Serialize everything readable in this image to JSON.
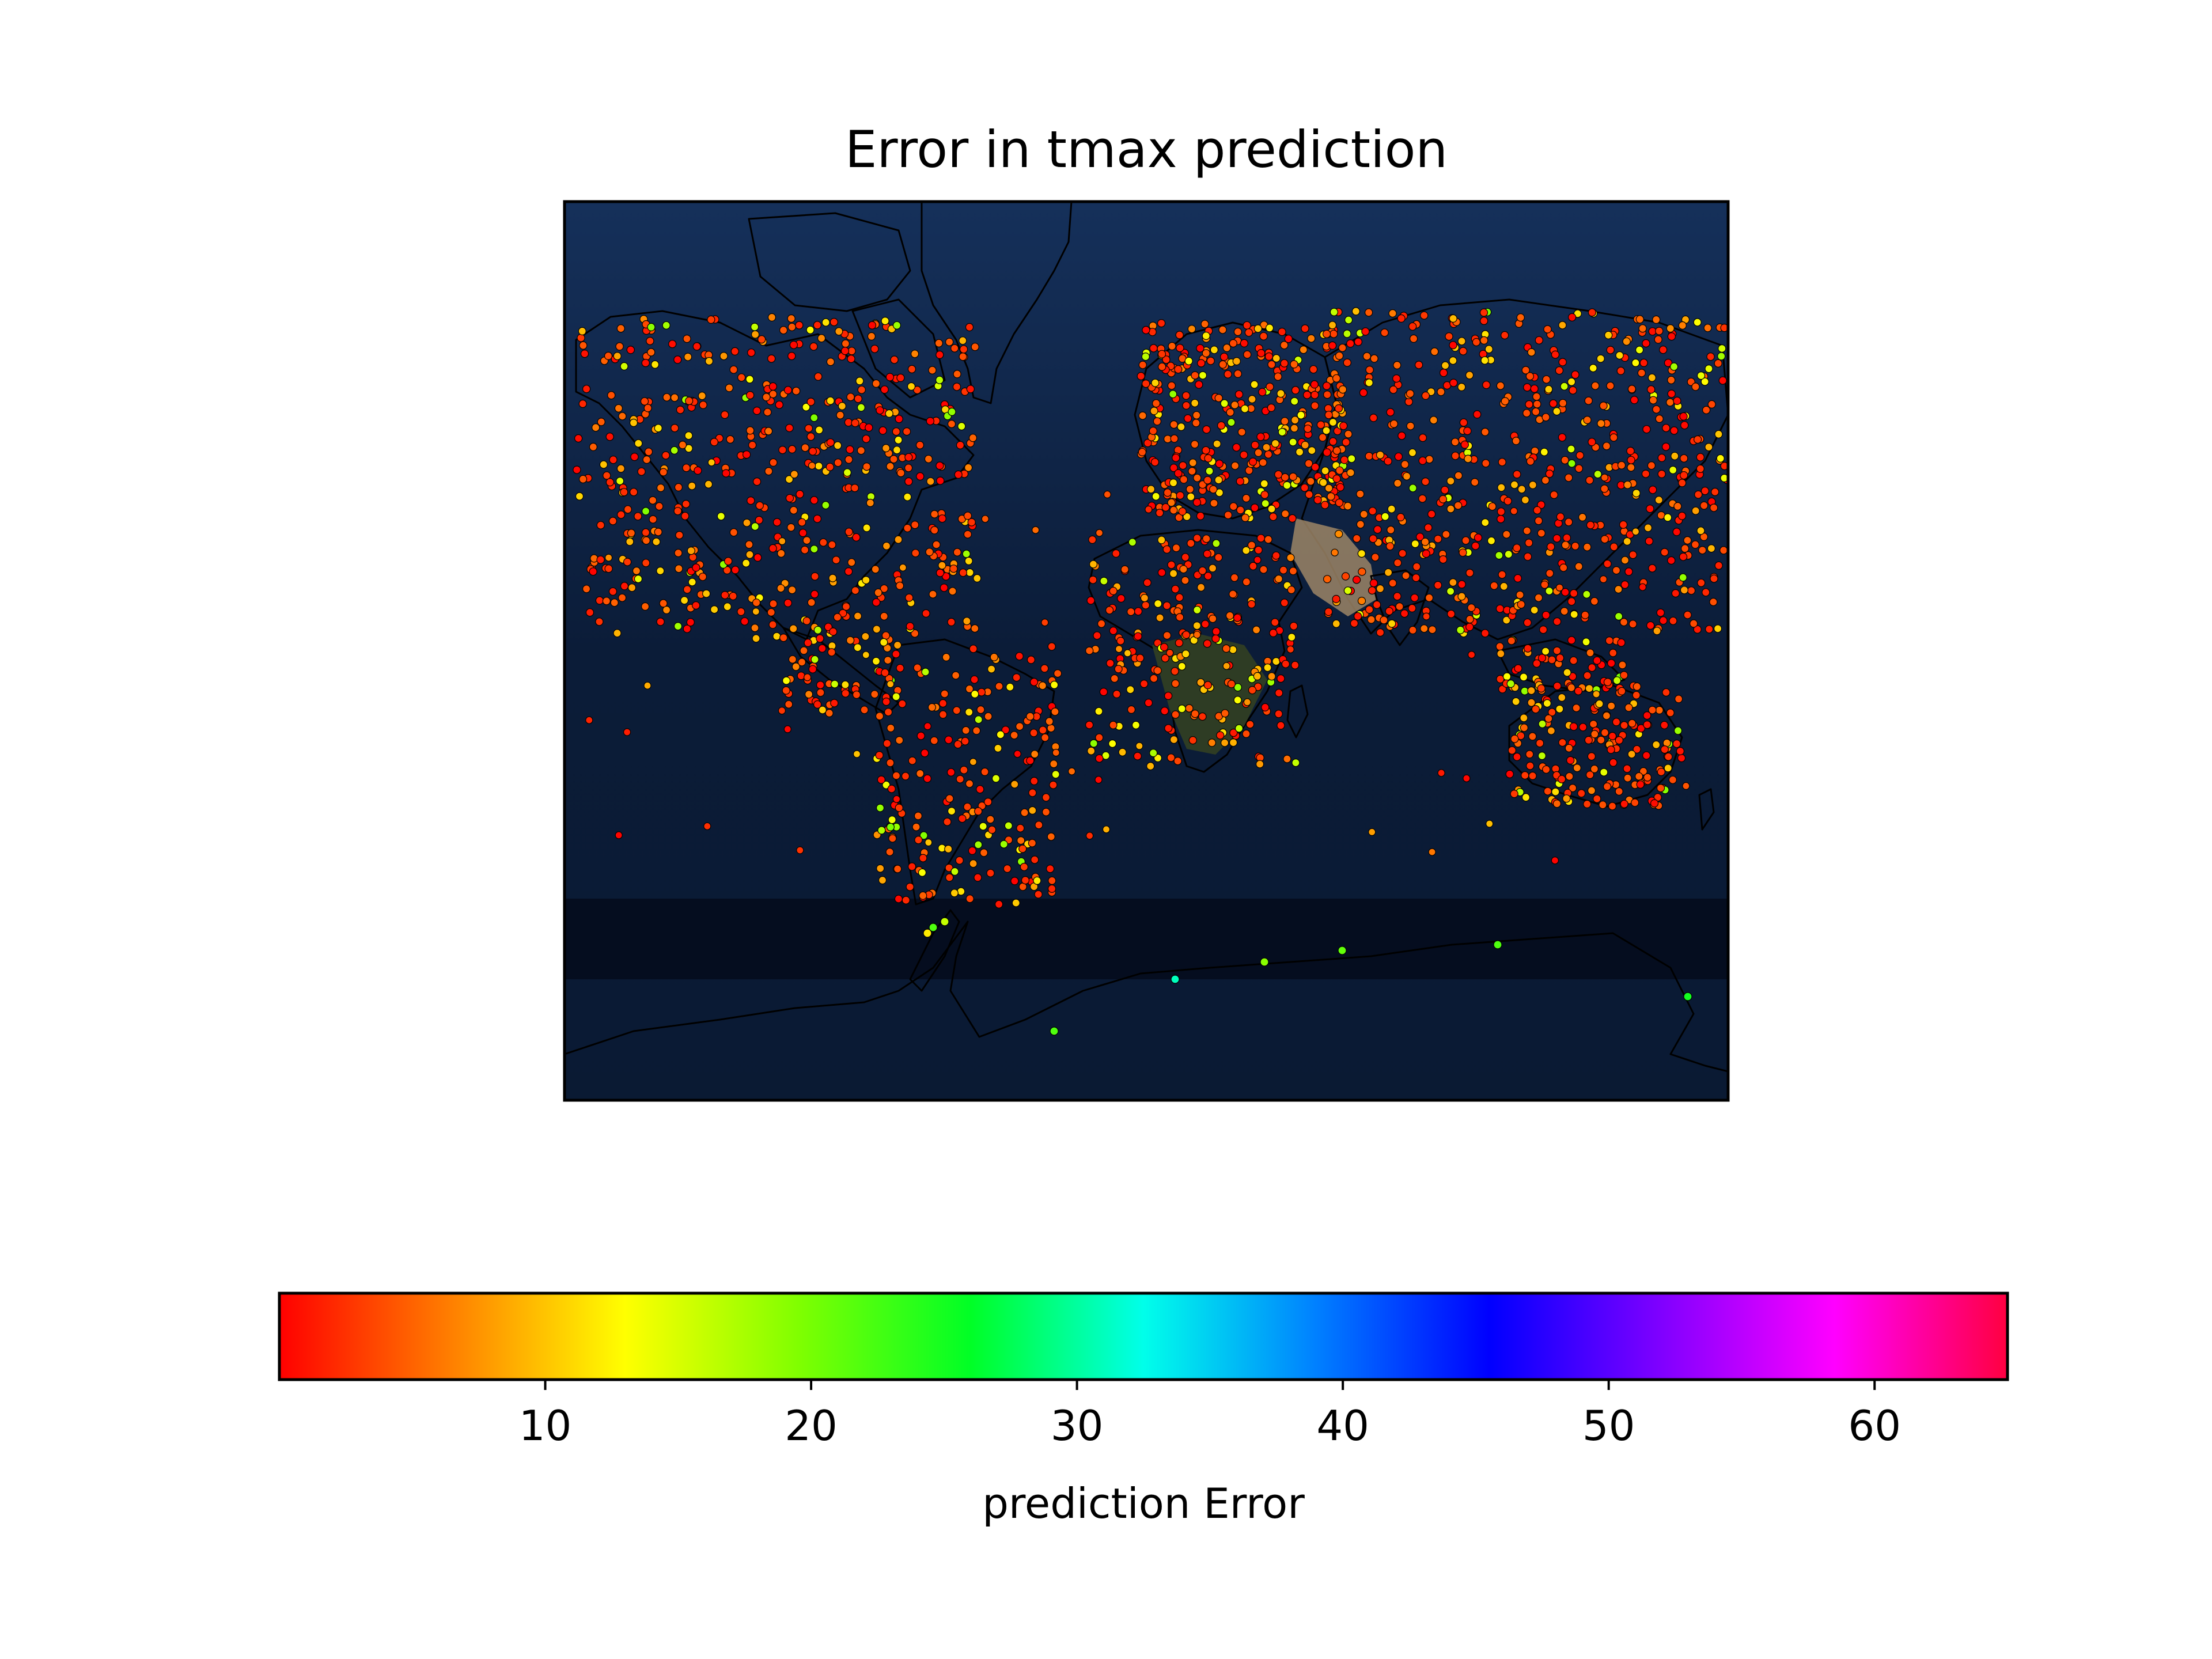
{
  "title": "Error in tmax prediction",
  "map": {
    "projection": "mercator",
    "basemap": "blue-marble",
    "marker_colormap": "gist_rainbow (reversed)",
    "marker_density_note": "thousands of weather-station markers colored by error; values 0-15 dominant over land, 15-30 near Antarctica"
  },
  "colorbar": {
    "label": "prediction Error",
    "min": 0,
    "max": 65,
    "ticks": [
      10,
      20,
      30,
      40,
      50,
      60
    ],
    "tick_labels": [
      "10",
      "20",
      "30",
      "40",
      "50",
      "60"
    ],
    "colors": [
      "#ff0000",
      "#ff8000",
      "#ffff00",
      "#80ff00",
      "#00ff26",
      "#00ffea",
      "#0080ff",
      "#0000ff",
      "#8000ff",
      "#ff00ff",
      "#ff0040"
    ]
  },
  "colors": {
    "ocean_deep": "#0a1a33",
    "ocean_shelf": "#1f3f6b",
    "ice": "#f4f6f8",
    "land_forest": "#2b3b22",
    "land_desert": "#a08866"
  }
}
